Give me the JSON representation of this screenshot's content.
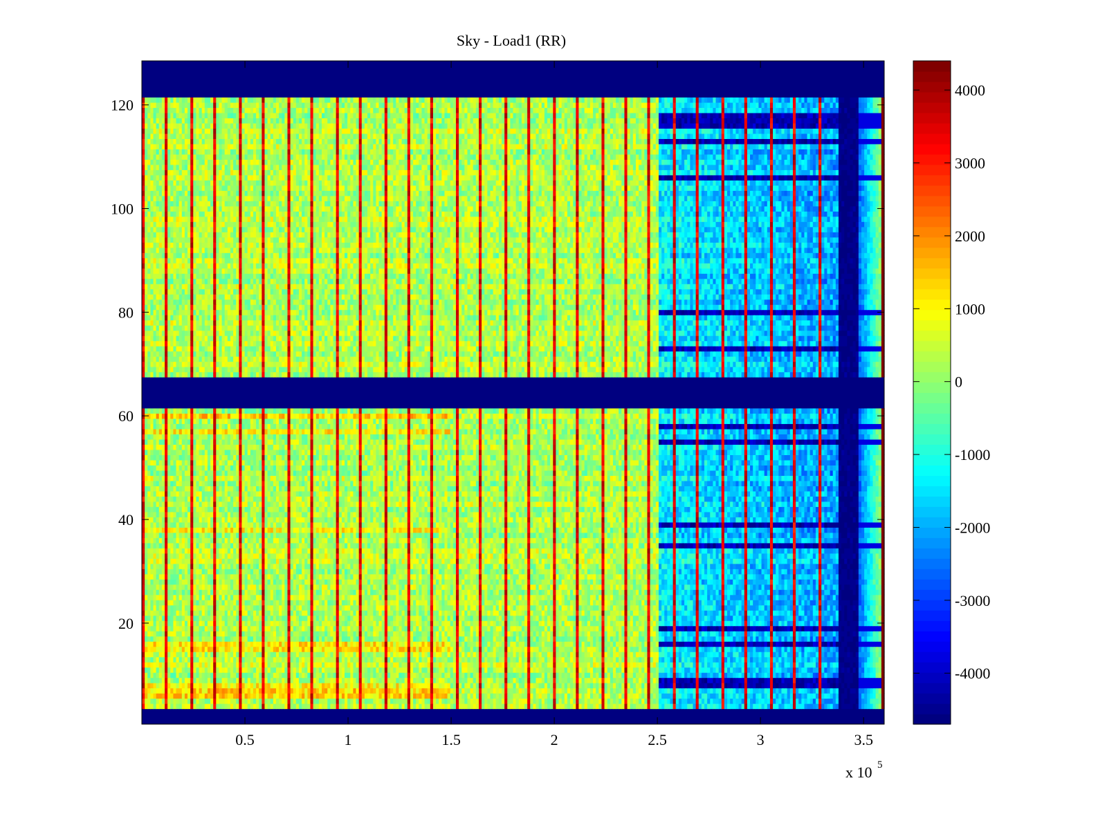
{
  "chart_data": {
    "type": "heatmap",
    "title": "Sky - Load1 (RR)",
    "xlabel": "",
    "ylabel": "",
    "x_exponent_label": "x 10",
    "x_exponent": "5",
    "xlim": [
      0,
      360000
    ],
    "ylim": [
      0.5,
      128.5
    ],
    "x_ticks": [
      {
        "value": 50000,
        "label": "0.5"
      },
      {
        "value": 100000,
        "label": "1"
      },
      {
        "value": 150000,
        "label": "1.5"
      },
      {
        "value": 200000,
        "label": "2"
      },
      {
        "value": 250000,
        "label": "2.5"
      },
      {
        "value": 300000,
        "label": "3"
      },
      {
        "value": 350000,
        "label": "3.5"
      }
    ],
    "y_ticks": [
      {
        "value": 20,
        "label": "20"
      },
      {
        "value": 40,
        "label": "40"
      },
      {
        "value": 60,
        "label": "60"
      },
      {
        "value": 80,
        "label": "80"
      },
      {
        "value": 100,
        "label": "100"
      },
      {
        "value": 120,
        "label": "120"
      }
    ],
    "colormap": "jet",
    "clim": [
      -4700,
      4400
    ],
    "colorbar": {
      "location": "right",
      "ticks": [
        {
          "value": 4000,
          "label": "4000"
        },
        {
          "value": 3000,
          "label": "3000"
        },
        {
          "value": 2000,
          "label": "2000"
        },
        {
          "value": 1000,
          "label": "1000"
        },
        {
          "value": 0,
          "label": "0"
        },
        {
          "value": -1000,
          "label": "-1000"
        },
        {
          "value": -2000,
          "label": "-2000"
        },
        {
          "value": -3000,
          "label": "-3000"
        },
        {
          "value": -4000,
          "label": "-4000"
        }
      ]
    },
    "grid": false,
    "description": {
      "rows": 128,
      "blank_row_ranges": [
        [
          1,
          3
        ],
        [
          62,
          67
        ],
        [
          122,
          128
        ]
      ],
      "blank_value": -4700,
      "regions": [
        {
          "x_range": [
            0,
            250000
          ],
          "typical_value": 300,
          "note": "yellow-green noise with periodic red/dark-red vertical spikes"
        },
        {
          "x_range": [
            250000,
            338000
          ],
          "typical_value": -1500,
          "note": "cyan-blue noise with dark blue horizontal stripes"
        },
        {
          "x_range": [
            338000,
            348000
          ],
          "typical_value": -4700,
          "note": "dark blue gap column"
        },
        {
          "x_range": [
            348000,
            358000
          ],
          "typical_value": -1500,
          "note": "cyan-blue recovery"
        },
        {
          "x_range": [
            358000,
            360000
          ],
          "typical_value": 4400,
          "note": "dark red edge column"
        }
      ],
      "spike_period_x": 11700,
      "spike_value": 4000,
      "dark_stripe_rows_right": [
        8,
        9,
        16,
        19,
        35,
        39,
        55,
        58,
        62,
        73,
        80,
        106,
        113,
        116,
        117,
        118
      ],
      "warm_stripe_rows_left": [
        6,
        7,
        8,
        15,
        16,
        38,
        57,
        60
      ]
    }
  }
}
